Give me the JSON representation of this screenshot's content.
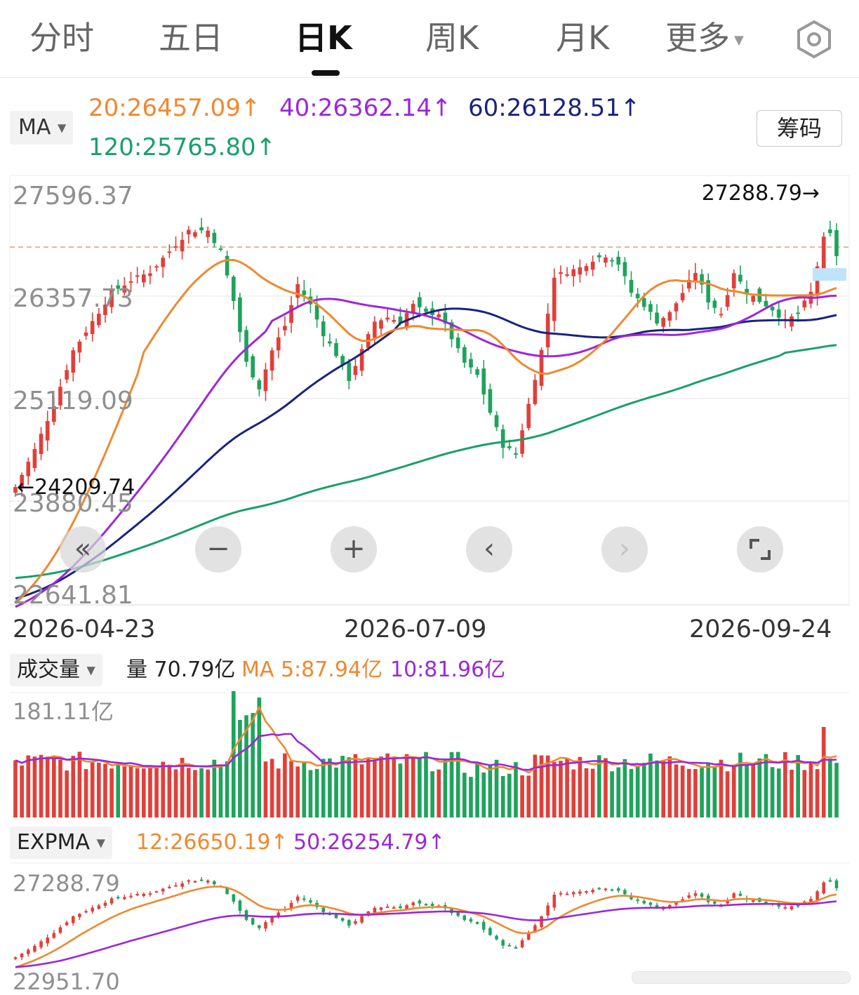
{
  "tabs": [
    "分时",
    "五日",
    "日K",
    "周K",
    "月K",
    "更多"
  ],
  "active_tab": "日K",
  "ma_legend": {
    "selector": "MA",
    "items": [
      {
        "label": "20:26457.09↑",
        "color": "#f0882f"
      },
      {
        "label": "40:26362.14↑",
        "color": "#9c27d9"
      },
      {
        "label": "60:26128.51↑",
        "color": "#1a237e"
      },
      {
        "label": "120:25765.80↑",
        "color": "#19a06a"
      }
    ]
  },
  "chip_button": "筹码",
  "zoom_controls": [
    "left-fast",
    "zoom-out",
    "zoom-in",
    "prev",
    "next",
    "fullscreen"
  ],
  "colors": {
    "up": "#e0403a",
    "down": "#1fa35c",
    "ma20": "#f0882f",
    "ma40": "#9c27d9",
    "ma60": "#1a237e",
    "ma120": "#19a06a"
  },
  "volume_panel": {
    "selector": "成交量",
    "info_prefix": "量 70.79亿",
    "ma5": "MA 5:87.94亿",
    "ma10": "10:81.96亿",
    "max_label": "181.11亿"
  },
  "expma_panel": {
    "selector": "EXPMA",
    "ema12": "12:26650.19↑",
    "ema50": "50:26254.79↑",
    "axis_top": "27288.79",
    "axis_bottom": "22951.70"
  },
  "chart_data": {
    "type": "candlestick",
    "y_axis_labels": [
      "27596.37",
      "26357.73",
      "25119.09",
      "23880.45",
      "22641.81"
    ],
    "ylim": [
      22641.81,
      27596.37
    ],
    "x_labels": [
      "2026-04-23",
      "2026-07-09",
      "2026-09-24"
    ],
    "max_marker": "27288.79→",
    "min_marker": "←24209.74",
    "reference_price": 26950,
    "anchors": [
      [
        0,
        24050
      ],
      [
        3,
        24500
      ],
      [
        6,
        25050
      ],
      [
        9,
        25700
      ],
      [
        12,
        26050
      ],
      [
        15,
        26400
      ],
      [
        18,
        26550
      ],
      [
        21,
        26650
      ],
      [
        24,
        26900
      ],
      [
        27,
        27150
      ],
      [
        30,
        27150
      ],
      [
        32,
        26900
      ],
      [
        34,
        26300
      ],
      [
        36,
        25550
      ],
      [
        38,
        25250
      ],
      [
        40,
        25700
      ],
      [
        42,
        26000
      ],
      [
        44,
        26500
      ],
      [
        46,
        26250
      ],
      [
        48,
        25900
      ],
      [
        50,
        25650
      ],
      [
        52,
        25350
      ],
      [
        54,
        25700
      ],
      [
        56,
        26050
      ],
      [
        58,
        26100
      ],
      [
        60,
        26050
      ],
      [
        62,
        26250
      ],
      [
        64,
        26150
      ],
      [
        66,
        26150
      ],
      [
        68,
        25850
      ],
      [
        70,
        25550
      ],
      [
        72,
        25400
      ],
      [
        74,
        24950
      ],
      [
        76,
        24550
      ],
      [
        78,
        24450
      ],
      [
        80,
        25050
      ],
      [
        82,
        25700
      ],
      [
        84,
        26600
      ],
      [
        86,
        26650
      ],
      [
        88,
        26700
      ],
      [
        90,
        26800
      ],
      [
        92,
        26850
      ],
      [
        94,
        26750
      ],
      [
        96,
        26400
      ],
      [
        98,
        26250
      ],
      [
        100,
        26050
      ],
      [
        102,
        26150
      ],
      [
        104,
        26400
      ],
      [
        106,
        26650
      ],
      [
        108,
        26300
      ],
      [
        110,
        26150
      ],
      [
        112,
        26650
      ],
      [
        114,
        26400
      ],
      [
        116,
        26300
      ],
      [
        118,
        26200
      ],
      [
        120,
        26050
      ],
      [
        122,
        26150
      ],
      [
        124,
        26400
      ],
      [
        126,
        27050
      ],
      [
        127,
        27100
      ],
      [
        128,
        26850
      ]
    ],
    "ma_end_values": {
      "ma20": 26457.09,
      "ma40": 26362.14,
      "ma60": 26128.51,
      "ma120": 25765.8
    },
    "ma_start_values": {
      "ma20": 22641.81,
      "ma40": 22600,
      "ma60": 22700,
      "ma120": 22950
    }
  }
}
